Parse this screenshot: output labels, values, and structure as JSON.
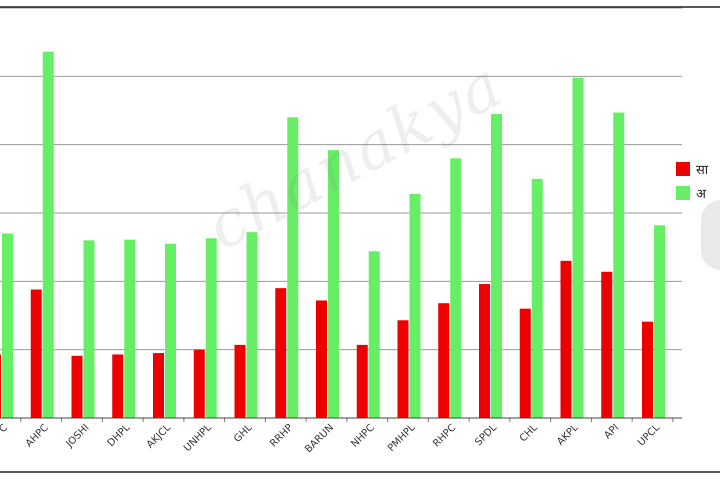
{
  "chart_data": {
    "type": "bar",
    "categories": [
      "C",
      "AHPC",
      "JOSHI",
      "DHPL",
      "AKJCL",
      "UNHPL",
      "GHL",
      "RRHP",
      "BARUN",
      "NHPC",
      "PMHPL",
      "RHPC",
      "SPDL",
      "CHL",
      "AKPL",
      "API",
      "UPCL"
    ],
    "series": [
      {
        "name": "सा",
        "color": "#ee0000",
        "values": [
          0.93,
          1.88,
          0.91,
          0.93,
          0.95,
          1.0,
          1.07,
          1.9,
          1.72,
          1.07,
          1.43,
          1.68,
          1.96,
          1.6,
          2.3,
          2.14,
          1.41
        ]
      },
      {
        "name": "अ",
        "color": "#66ee66",
        "values": [
          2.7,
          5.36,
          2.6,
          2.61,
          2.55,
          2.63,
          2.72,
          4.4,
          3.92,
          2.44,
          3.28,
          3.8,
          4.45,
          3.5,
          4.98,
          4.47,
          2.82
        ]
      }
    ],
    "ylim": [
      0,
      6
    ],
    "grid": true,
    "legend_position": "right"
  },
  "watermark": "chanakya"
}
